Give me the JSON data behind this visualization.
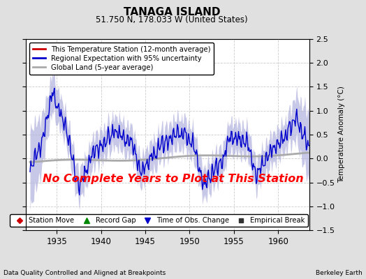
{
  "title": "TANAGA ISLAND",
  "subtitle": "51.750 N, 178.033 W (United States)",
  "ylabel": "Temperature Anomaly (°C)",
  "xlabel_left": "Data Quality Controlled and Aligned at Breakpoints",
  "xlabel_right": "Berkeley Earth",
  "annotation": "No Complete Years to Plot at This Station",
  "annotation_color": "#ff0000",
  "xlim": [
    1931.5,
    1963.5
  ],
  "ylim": [
    -1.5,
    2.5
  ],
  "yticks": [
    -1.5,
    -1.0,
    -0.5,
    0.0,
    0.5,
    1.0,
    1.5,
    2.0,
    2.5
  ],
  "xticks": [
    1935,
    1940,
    1945,
    1950,
    1955,
    1960
  ],
  "bg_color": "#e0e0e0",
  "plot_bg_color": "#ffffff",
  "grid_color": "#cccccc",
  "regional_line_color": "#0000cc",
  "regional_fill_color": "#b0b0dd",
  "station_line_color": "#cc0000",
  "global_line_color": "#aaaaaa",
  "legend_items": [
    {
      "label": "This Temperature Station (12-month average)",
      "color": "#cc0000",
      "lw": 2
    },
    {
      "label": "Regional Expectation with 95% uncertainty",
      "color": "#0000cc",
      "lw": 2
    },
    {
      "label": "Global Land (5-year average)",
      "color": "#aaaaaa",
      "lw": 2
    }
  ],
  "bottom_legend": [
    {
      "label": "Station Move",
      "marker": "D",
      "color": "#cc0000"
    },
    {
      "label": "Record Gap",
      "marker": "^",
      "color": "#008800"
    },
    {
      "label": "Time of Obs. Change",
      "marker": "v",
      "color": "#0000cc"
    },
    {
      "label": "Empirical Break",
      "marker": "s",
      "color": "#333333"
    }
  ],
  "seed": 42,
  "n_points": 380
}
